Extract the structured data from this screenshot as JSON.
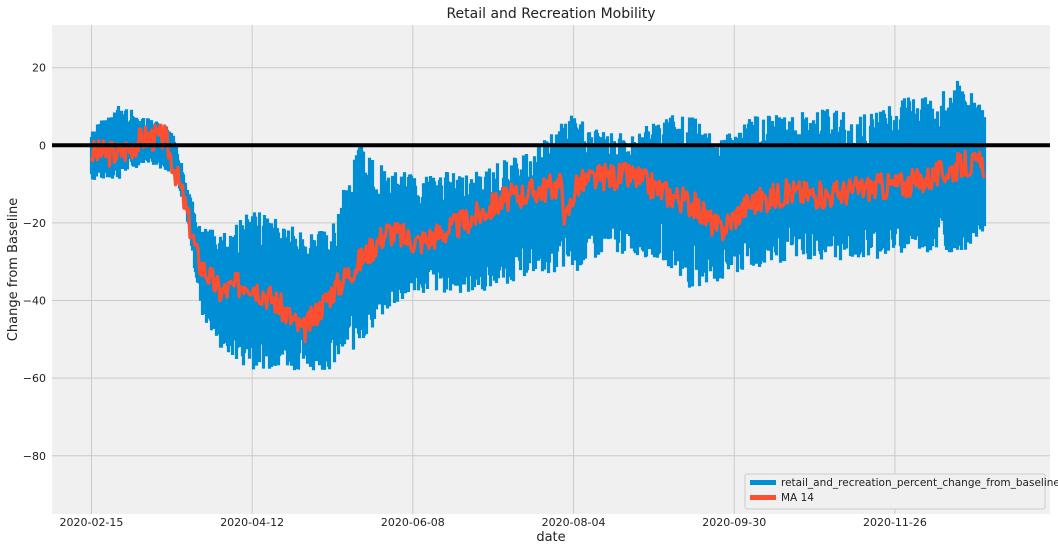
{
  "chart_data": {
    "type": "line",
    "title": "Retail and Recreation Mobility",
    "xlabel": "date",
    "ylabel": "Change from Baseline",
    "x_ticks": [
      "2020-02-15",
      "2020-04-12",
      "2020-06-08",
      "2020-08-04",
      "2020-09-30",
      "2020-11-26"
    ],
    "x_range": [
      "2020-02-01",
      "2021-01-20"
    ],
    "y_ticks": [
      20,
      0,
      -20,
      -40,
      -60,
      -80
    ],
    "ylim": [
      -95,
      31
    ],
    "grid": true,
    "legend_position": "bottom-right",
    "reference_line": {
      "y": 0,
      "color": "#000000"
    },
    "series": [
      {
        "name": "retail_and_recreation_percent_change_from_baseline",
        "color": "#008fd5",
        "x": [
          "2020-02-15",
          "2020-02-25",
          "2020-03-05",
          "2020-03-15",
          "2020-03-20",
          "2020-03-25",
          "2020-04-01",
          "2020-04-10",
          "2020-04-20",
          "2020-04-30",
          "2020-05-10",
          "2020-05-20",
          "2020-05-30",
          "2020-06-10",
          "2020-06-20",
          "2020-07-01",
          "2020-07-10",
          "2020-07-20",
          "2020-08-01",
          "2020-08-05",
          "2020-08-15",
          "2020-08-25",
          "2020-09-05",
          "2020-09-15",
          "2020-09-25",
          "2020-10-05",
          "2020-10-20",
          "2020-11-01",
          "2020-11-15",
          "2020-12-01",
          "2020-12-10",
          "2020-12-20",
          "2020-12-28"
        ],
        "upper": [
          5,
          12,
          8,
          5,
          -10,
          -20,
          -20,
          -15,
          -15,
          -20,
          -20,
          5,
          -5,
          -5,
          -5,
          -5,
          -2,
          0,
          10,
          10,
          5,
          5,
          10,
          10,
          5,
          10,
          10,
          12,
          10,
          15,
          15,
          20,
          10
        ],
        "lower": [
          -10,
          -10,
          -5,
          -8,
          -20,
          -45,
          -55,
          -60,
          -60,
          -60,
          -60,
          -55,
          -45,
          -40,
          -40,
          -40,
          -38,
          -35,
          -35,
          -35,
          -30,
          -30,
          -32,
          -40,
          -38,
          -35,
          -32,
          -32,
          -32,
          -30,
          -30,
          -30,
          -25
        ]
      },
      {
        "name": "MA 14",
        "color": "#fc4f30",
        "x": [
          "2020-02-15",
          "2020-02-25",
          "2020-03-05",
          "2020-03-12",
          "2020-03-18",
          "2020-03-24",
          "2020-04-01",
          "2020-04-10",
          "2020-04-20",
          "2020-04-30",
          "2020-05-10",
          "2020-05-20",
          "2020-05-30",
          "2020-06-10",
          "2020-06-20",
          "2020-07-01",
          "2020-07-10",
          "2020-07-20",
          "2020-07-31",
          "2020-08-01",
          "2020-08-05",
          "2020-08-15",
          "2020-08-25",
          "2020-09-05",
          "2020-09-15",
          "2020-09-25",
          "2020-10-05",
          "2020-10-20",
          "2020-11-01",
          "2020-11-15",
          "2020-12-01",
          "2020-12-10",
          "2020-12-20",
          "2020-12-28"
        ],
        "values": [
          -2,
          -2,
          2,
          2,
          -12,
          -30,
          -38,
          -35,
          -40,
          -48,
          -38,
          -30,
          -22,
          -25,
          -22,
          -18,
          -14,
          -12,
          -10,
          -20,
          -10,
          -8,
          -8,
          -12,
          -15,
          -22,
          -15,
          -12,
          -13,
          -11,
          -10,
          -8,
          -5,
          -5
        ]
      }
    ]
  }
}
